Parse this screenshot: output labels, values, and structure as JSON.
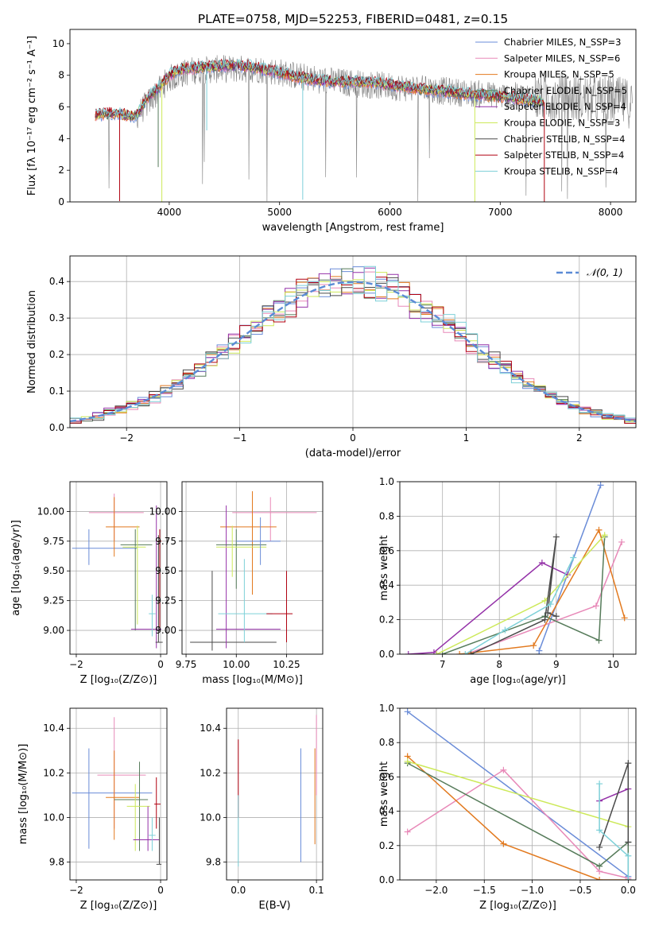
{
  "figure_title": "PLATE=0758, MJD=52253, FIBERID=0481, z=0.15",
  "colors": {
    "series": [
      "#6A8CD8",
      "#E889B8",
      "#E2791E",
      "#567B5A",
      "#9431A8",
      "#CDE95A",
      "#4A4A4A",
      "#B00010",
      "#7DD0D8"
    ],
    "data_grey": "#808080",
    "normal_curve": "#5B8BD6"
  },
  "chart_data": [
    {
      "id": "spectrum",
      "type": "line",
      "title": "PLATE=0758, MJD=52253, FIBERID=0481, z=0.15",
      "xlabel": "wavelength [Angstrom, rest frame]",
      "ylabel": "Flux [fλ 10⁻¹⁷ erg cm⁻² s⁻¹ A⁻¹]",
      "xlim": [
        3100,
        8230
      ],
      "ylim": [
        0,
        10.9
      ],
      "xticks": [
        "4000",
        "5000",
        "6000",
        "7000",
        "8000"
      ],
      "yticks": [
        "0",
        "2",
        "4",
        "6",
        "8",
        "10"
      ],
      "legend_position": "top-right",
      "legend": [
        "Chabrier MILES, N_SSP=3",
        "Salpeter MILES, N_SSP=6",
        "Kroupa MILES, N_SSP=5",
        "Chabrier ELODIE, N_SSP=5",
        "Salpeter ELODIE, N_SSP=4",
        "Kroupa ELODIE, N_SSP=3",
        "Chabrier STELIB, N_SSP=4",
        "Salpeter STELIB, N_SSP=4",
        "Kroupa STELIB, N_SSP=4"
      ],
      "model_continuum": {
        "x": [
          3330,
          3500,
          3700,
          3800,
          3900,
          4000,
          4100,
          4300,
          4500,
          4700,
          4900,
          5100,
          5300,
          5500,
          5700,
          5900,
          6100,
          6300,
          6500,
          6700,
          6900,
          7100,
          7300,
          7400
        ],
        "y": [
          5.5,
          5.6,
          5.4,
          6.6,
          7.2,
          8.0,
          8.4,
          8.5,
          8.6,
          8.6,
          8.3,
          8.0,
          7.7,
          7.6,
          7.6,
          7.5,
          7.3,
          7.1,
          7.0,
          6.8,
          6.7,
          6.6,
          6.4,
          6.3
        ]
      },
      "data_continuum": {
        "x": [
          3330,
          3500,
          3700,
          3900,
          4000,
          4200,
          4500,
          4800,
          5000,
          5200,
          5500,
          6000,
          6500,
          7000,
          7500,
          8000,
          8200
        ],
        "y": [
          5.5,
          5.6,
          5.4,
          7.0,
          7.8,
          8.3,
          8.4,
          8.4,
          8.2,
          7.9,
          7.6,
          7.3,
          7.0,
          6.7,
          6.6,
          6.4,
          6.2
        ]
      },
      "absorption_lines": [
        {
          "x": 3550,
          "depth": 5.5,
          "series": 7
        },
        {
          "x": 3900,
          "depth": 5.0,
          "series": 3
        },
        {
          "x": 3933,
          "depth": 7.5,
          "series": 5
        },
        {
          "x": 4340,
          "depth": 4.0,
          "series": 8
        },
        {
          "x": 5210,
          "depth": 7.7,
          "series": 8
        },
        {
          "x": 6770,
          "depth": 6.8,
          "series": 5
        },
        {
          "x": 7400,
          "depth": 6.3,
          "series": 7
        }
      ]
    },
    {
      "id": "residuals",
      "type": "line",
      "xlabel": "(data-model)/error",
      "ylabel": "Normed distribution",
      "xlim": [
        -2.5,
        2.5
      ],
      "ylim": [
        0,
        0.47
      ],
      "xticks": [
        "−2",
        "−1",
        "0",
        "1",
        "2"
      ],
      "yticks": [
        "0.0",
        "0.1",
        "0.2",
        "0.3",
        "0.4"
      ],
      "legend_position": "top-right",
      "legend": [
        "𝒩(0, 1)"
      ],
      "normal": {
        "mean": 0,
        "sigma": 1
      },
      "bin_width": 0.1,
      "bins_left": -2.5
    },
    {
      "id": "age_vs_Z",
      "type": "scatter",
      "xlabel": "Z [log₁₀(Z/Z⊙)]",
      "ylabel": "age  [log₁₀(age/yr)]",
      "xlim": [
        -2.15,
        0.15
      ],
      "ylim": [
        8.8,
        10.25
      ],
      "xticks": [
        "−2",
        "0"
      ],
      "yticks": [
        "9.00",
        "9.25",
        "9.50",
        "9.75",
        "10.00"
      ],
      "points": [
        {
          "s": 0,
          "x": -1.7,
          "xe": [
            -2.1,
            -0.55
          ],
          "y": 9.69,
          "ye": [
            9.55,
            9.85
          ]
        },
        {
          "s": 1,
          "x": -1.1,
          "xe": [
            -1.7,
            -0.4
          ],
          "y": 9.99,
          "ye": [
            9.75,
            10.15
          ]
        },
        {
          "s": 2,
          "x": -1.1,
          "xe": [
            -1.3,
            -0.5
          ],
          "y": 9.87,
          "ye": [
            9.62,
            10.12
          ]
        },
        {
          "s": 3,
          "x": -0.6,
          "xe": [
            -0.95,
            -0.2
          ],
          "y": 9.72,
          "ye": [
            9.0,
            9.85
          ]
        },
        {
          "s": 5,
          "x": -0.55,
          "xe": [
            -0.9,
            -0.35
          ],
          "y": 9.7,
          "ye": [
            9.05,
            9.88
          ]
        },
        {
          "s": 4,
          "x": -0.1,
          "xe": [
            -0.7,
            0.02
          ],
          "y": 9.01,
          "ye": [
            8.85,
            10.05
          ]
        },
        {
          "s": 6,
          "x": -0.05,
          "xe": [
            -0.12,
            0.05
          ],
          "y": 8.9,
          "ye": [
            8.9,
            9.8
          ]
        },
        {
          "s": 8,
          "x": -0.2,
          "xe": [
            -0.28,
            -0.12
          ],
          "y": 9.14,
          "ye": [
            8.95,
            9.3
          ]
        },
        {
          "s": 7,
          "x": -0.02,
          "xe": [
            -0.06,
            0.02
          ],
          "y": 9.75,
          "ye": [
            9.0,
            9.85
          ]
        }
      ]
    },
    {
      "id": "age_vs_mass",
      "type": "scatter",
      "xlabel": "mass [log₁₀(M/M⊙)]",
      "ylabel": "",
      "xlim": [
        9.73,
        10.43
      ],
      "ylim": [
        8.8,
        10.25
      ],
      "xticks": [
        "9.75",
        "10.00",
        "10.25"
      ],
      "yticks": [
        "9.00",
        "9.25",
        "9.50",
        "9.75",
        "10.00"
      ],
      "points": [
        {
          "s": 6,
          "x": 9.88,
          "xe": [
            9.77,
            10.2
          ],
          "y": 8.9,
          "ye": [
            8.83,
            9.5
          ]
        },
        {
          "s": 1,
          "x": 10.17,
          "xe": [
            9.98,
            10.4
          ],
          "y": 9.99,
          "ye": [
            9.75,
            10.12
          ]
        },
        {
          "s": 2,
          "x": 10.08,
          "xe": [
            9.92,
            10.2
          ],
          "y": 9.87,
          "ye": [
            9.3,
            10.17
          ]
        },
        {
          "s": 4,
          "x": 9.95,
          "xe": [
            9.9,
            10.22
          ],
          "y": 9.01,
          "ye": [
            8.85,
            10.05
          ]
        },
        {
          "s": 3,
          "x": 10.0,
          "xe": [
            9.9,
            10.15
          ],
          "y": 9.72,
          "ye": [
            9.35,
            9.85
          ]
        },
        {
          "s": 5,
          "x": 9.98,
          "xe": [
            9.9,
            10.15
          ],
          "y": 9.7,
          "ye": [
            9.45,
            9.88
          ]
        },
        {
          "s": 8,
          "x": 10.04,
          "xe": [
            9.91,
            10.18
          ],
          "y": 9.14,
          "ye": [
            8.9,
            9.6
          ]
        },
        {
          "s": 7,
          "x": 10.25,
          "xe": [
            10.15,
            10.28
          ],
          "y": 9.14,
          "ye": [
            8.9,
            9.5
          ]
        },
        {
          "s": 0,
          "x": 10.12,
          "xe": [
            10.0,
            10.22
          ],
          "y": 9.75,
          "ye": [
            9.55,
            9.95
          ]
        }
      ]
    },
    {
      "id": "weight_vs_age",
      "type": "line",
      "xlabel": "age  [log₁₀(age/yr)]",
      "ylabel": "mass weight",
      "xlim": [
        6.25,
        10.4
      ],
      "ylim": [
        0,
        1.0
      ],
      "xticks": [
        "7",
        "8",
        "9",
        "10"
      ],
      "yticks": [
        "0.0",
        "0.2",
        "0.4",
        "0.6",
        "0.8",
        "1.0"
      ],
      "series": [
        {
          "s": 0,
          "x": [
            8.7,
            8.7,
            9.78
          ],
          "y": [
            0.0,
            0.02,
            0.98
          ]
        },
        {
          "s": 1,
          "x": [
            7.5,
            9.7,
            10.15
          ],
          "y": [
            0.01,
            0.28,
            0.65
          ]
        },
        {
          "s": 2,
          "x": [
            7.3,
            8.6,
            9.75,
            10.2
          ],
          "y": [
            0.0,
            0.05,
            0.72,
            0.21
          ]
        },
        {
          "s": 3,
          "x": [
            7.0,
            8.8,
            9.75,
            9.85
          ],
          "y": [
            0.0,
            0.22,
            0.08,
            0.68
          ]
        },
        {
          "s": 4,
          "x": [
            6.4,
            6.85,
            8.75,
            9.2
          ],
          "y": [
            0.0,
            0.01,
            0.53,
            0.46
          ]
        },
        {
          "s": 5,
          "x": [
            6.9,
            8.8,
            9.85
          ],
          "y": [
            0.0,
            0.31,
            0.69
          ]
        },
        {
          "s": 6,
          "x": [
            7.5,
            8.8,
            9.0,
            8.85,
            9.0
          ],
          "y": [
            0.0,
            0.2,
            0.68,
            0.24,
            0.22
          ]
        },
        {
          "s": 8,
          "x": [
            7.4,
            8.1,
            8.9,
            9.3
          ],
          "y": [
            0.0,
            0.14,
            0.29,
            0.56
          ]
        }
      ]
    },
    {
      "id": "mass_vs_Z",
      "type": "scatter",
      "xlabel": "Z [log₁₀(Z/Z⊙)]",
      "ylabel": "mass [log₁₀(M/M⊙)]",
      "xlim": [
        -2.15,
        0.15
      ],
      "ylim": [
        9.72,
        10.49
      ],
      "xticks": [
        "−2",
        "0"
      ],
      "yticks": [
        "9.8",
        "10.0",
        "10.2",
        "10.4"
      ],
      "points": [
        {
          "s": 0,
          "x": -1.7,
          "xe": [
            -2.1,
            -0.2
          ],
          "y": 10.11,
          "ye": [
            9.86,
            10.31
          ]
        },
        {
          "s": 1,
          "x": -1.1,
          "xe": [
            -1.5,
            -0.35
          ],
          "y": 10.19,
          "ye": [
            9.95,
            10.45
          ]
        },
        {
          "s": 2,
          "x": -1.1,
          "xe": [
            -1.3,
            -0.5
          ],
          "y": 10.09,
          "ye": [
            9.9,
            10.3
          ]
        },
        {
          "s": 3,
          "x": -0.5,
          "xe": [
            -1.1,
            -0.3
          ],
          "y": 10.08,
          "ye": [
            9.85,
            10.25
          ]
        },
        {
          "s": 5,
          "x": -0.6,
          "xe": [
            -0.8,
            -0.25
          ],
          "y": 10.05,
          "ye": [
            9.85,
            10.15
          ]
        },
        {
          "s": 4,
          "x": -0.3,
          "xe": [
            -0.65,
            -0.02
          ],
          "y": 9.9,
          "ye": [
            9.85,
            10.05
          ]
        },
        {
          "s": 7,
          "x": -0.1,
          "xe": [
            -0.15,
            0.0
          ],
          "y": 10.06,
          "ye": [
            9.95,
            10.18
          ]
        },
        {
          "s": 6,
          "x": -0.03,
          "xe": [
            -0.1,
            0.02
          ],
          "y": 9.79,
          "ye": [
            9.79,
            10.0
          ]
        },
        {
          "s": 8,
          "x": -0.2,
          "xe": [
            -0.28,
            -0.12
          ],
          "y": 9.92,
          "ye": [
            9.85,
            10.0
          ]
        }
      ]
    },
    {
      "id": "mass_vs_EBV",
      "type": "scatter",
      "xlabel": "E(B-V)",
      "ylabel": "",
      "xlim": [
        -0.015,
        0.108
      ],
      "ylim": [
        9.72,
        10.49
      ],
      "xticks": [
        "0.0",
        "0.1"
      ],
      "yticks": [
        "9.8",
        "10.0",
        "10.2",
        "10.4"
      ],
      "points": [
        {
          "s": 7,
          "x": 0.0,
          "xe": [
            0.0,
            0.0
          ],
          "y": 10.2,
          "ye": [
            10.0,
            10.35
          ]
        },
        {
          "s": 8,
          "x": 0.0,
          "xe": [
            0.0,
            0.0
          ],
          "y": 9.85,
          "ye": [
            9.78,
            10.1
          ]
        },
        {
          "s": 0,
          "x": 0.08,
          "xe": [
            0.08,
            0.08
          ],
          "y": 10.05,
          "ye": [
            9.8,
            10.31
          ]
        },
        {
          "s": 1,
          "x": 0.1,
          "xe": [
            0.1,
            0.1
          ],
          "y": 10.3,
          "ye": [
            10.1,
            10.46
          ]
        },
        {
          "s": 2,
          "x": 0.098,
          "xe": [
            0.098,
            0.098
          ],
          "y": 10.1,
          "ye": [
            9.88,
            10.31
          ]
        }
      ]
    },
    {
      "id": "weight_vs_Z",
      "type": "line",
      "xlabel": "Z [log₁₀(Z/Z⊙)]",
      "ylabel": "mass weight",
      "xlim": [
        -2.38,
        0.08
      ],
      "ylim": [
        0,
        1.0
      ],
      "xticks": [
        "−2.0",
        "−1.5",
        "−1.0",
        "−0.5",
        "0.0"
      ],
      "yticks": [
        "0.0",
        "0.2",
        "0.4",
        "0.6",
        "0.8",
        "1.0"
      ],
      "series": [
        {
          "s": 0,
          "x": [
            -2.3,
            0.0,
            0.0
          ],
          "y": [
            0.98,
            0.02,
            0.0
          ]
        },
        {
          "s": 1,
          "x": [
            -2.3,
            -1.3,
            -0.3,
            0.0
          ],
          "y": [
            0.28,
            0.64,
            0.05,
            0.01
          ]
        },
        {
          "s": 2,
          "x": [
            -2.3,
            -1.3,
            -0.3,
            0.0
          ],
          "y": [
            0.72,
            0.21,
            0.0,
            0.0
          ]
        },
        {
          "s": 3,
          "x": [
            -2.3,
            -0.3,
            0.0,
            0.0
          ],
          "y": [
            0.68,
            0.08,
            0.22,
            0.0
          ]
        },
        {
          "s": 4,
          "x": [
            -0.3,
            0.0
          ],
          "y": [
            0.46,
            0.53
          ]
        },
        {
          "s": 5,
          "x": [
            -2.3,
            0.0
          ],
          "y": [
            0.69,
            0.31
          ]
        },
        {
          "s": 6,
          "x": [
            -0.3,
            0.0,
            0.0
          ],
          "y": [
            0.19,
            0.68,
            0.22
          ]
        },
        {
          "s": 8,
          "x": [
            -0.3,
            -0.3,
            0.0,
            0.0
          ],
          "y": [
            0.56,
            0.29,
            0.14,
            0.0
          ]
        }
      ]
    }
  ]
}
